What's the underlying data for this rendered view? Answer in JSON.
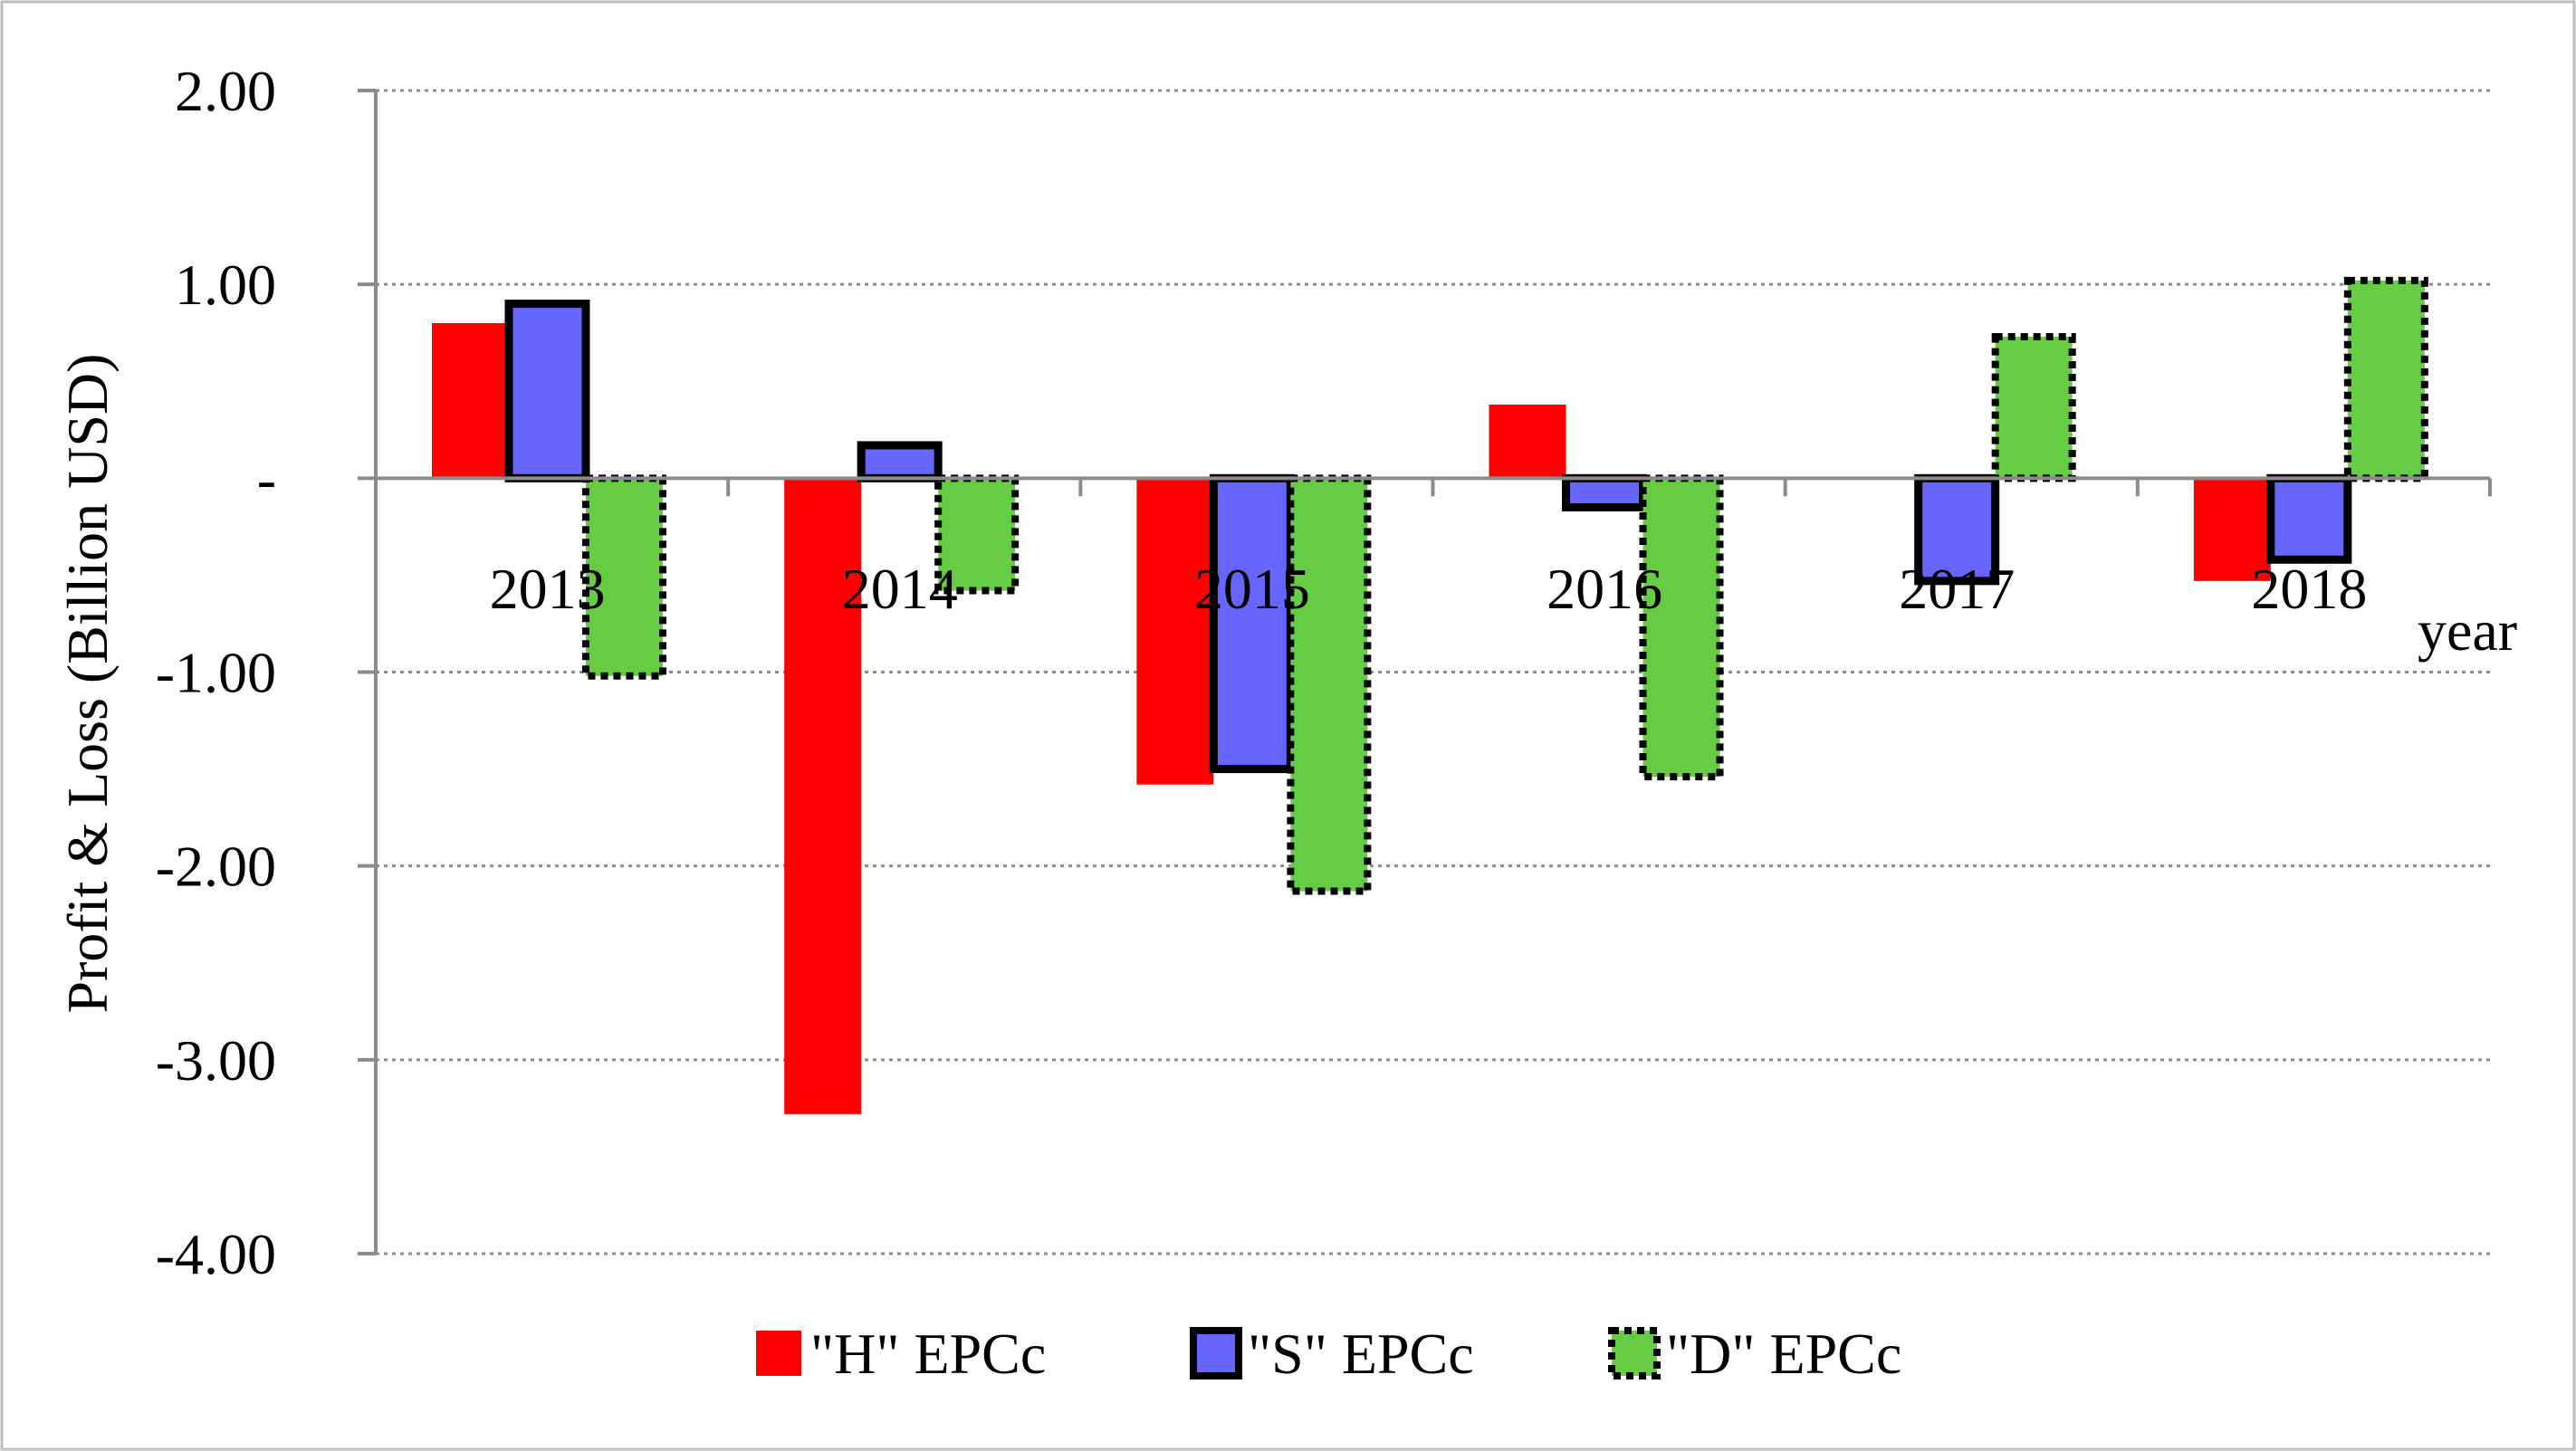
{
  "chart_data": {
    "type": "bar",
    "title": "",
    "xlabel": "year",
    "ylabel": "Profit & Loss (Billion USD)",
    "categories": [
      "2013",
      "2014",
      "2015",
      "2016",
      "2017",
      "2018"
    ],
    "ylim": [
      -4,
      2
    ],
    "yticks": [
      2,
      1,
      0,
      -1,
      -2,
      -3,
      -4
    ],
    "ytick_labels": [
      "2.00",
      "1.00",
      "-",
      "-1.00",
      "-2.00",
      "-3.00",
      "-4.00"
    ],
    "grid": true,
    "legend_position": "bottom",
    "series": [
      {
        "name": "\"H\" EPCc",
        "values": [
          0.8,
          -3.28,
          -1.58,
          0.38,
          0,
          -0.53
        ],
        "color": "#ff0000"
      },
      {
        "name": "\"S\" EPCc",
        "values": [
          0.9,
          0.17,
          -1.5,
          -0.15,
          -0.53,
          -0.42
        ],
        "color": "#6666ff"
      },
      {
        "name": "\"D\" EPCc",
        "values": [
          -1.02,
          -0.58,
          -2.13,
          -1.54,
          0.73,
          1.02
        ],
        "color": "#66cc44"
      }
    ]
  }
}
